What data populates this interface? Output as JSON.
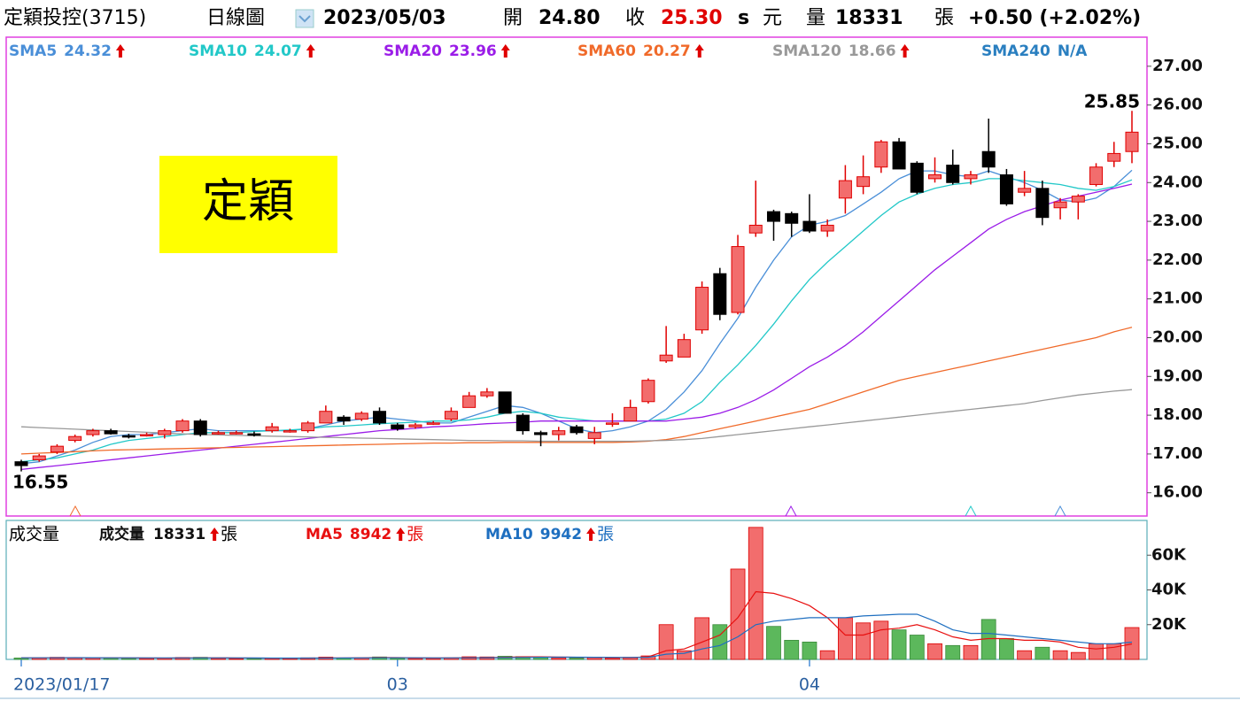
{
  "header": {
    "title": "定穎投控(3715)",
    "period": "日線圖",
    "date": "2023/05/03",
    "open_label": "開",
    "open": "24.80",
    "close_label": "收",
    "close": "25.30",
    "s": "s",
    "currency": "元",
    "volume_label": "量",
    "volume": "18331",
    "volume_unit": "張",
    "change": "+0.50 (+2.02%)"
  },
  "chart_data": [
    {
      "type": "candlestick",
      "categories": [
        "2023/01/17",
        null,
        null,
        null,
        null,
        null,
        null,
        null,
        null,
        null,
        null,
        null,
        null,
        null,
        null,
        null,
        null,
        null,
        null,
        null,
        null,
        "03",
        null,
        null,
        null,
        null,
        null,
        null,
        null,
        null,
        null,
        null,
        null,
        null,
        null,
        null,
        null,
        null,
        null,
        null,
        null,
        null,
        null,
        null,
        "04",
        null,
        null,
        null,
        null,
        null,
        null,
        null,
        null,
        null,
        null,
        null,
        null,
        null,
        null,
        null,
        null,
        null,
        null
      ],
      "open": [
        16.8,
        16.85,
        17.05,
        17.35,
        17.5,
        17.6,
        17.47,
        17.5,
        17.5,
        17.6,
        17.85,
        17.55,
        17.55,
        17.52,
        17.6,
        17.6,
        17.6,
        17.8,
        17.95,
        17.9,
        18.1,
        17.75,
        17.7,
        17.8,
        17.9,
        18.2,
        18.5,
        18.6,
        18.0,
        17.55,
        17.5,
        17.7,
        17.4,
        17.8,
        17.85,
        18.35,
        19.4,
        19.5,
        20.2,
        21.65,
        20.65,
        22.7,
        23.25,
        23.2,
        23.0,
        22.75,
        23.6,
        23.9,
        24.4,
        25.05,
        24.5,
        24.1,
        24.45,
        24.1,
        24.8,
        24.2,
        23.75,
        23.85,
        23.35,
        23.5,
        23.95,
        24.55,
        24.8
      ],
      "high": [
        16.85,
        17.0,
        17.25,
        17.5,
        17.65,
        17.65,
        17.52,
        17.55,
        17.65,
        17.9,
        17.9,
        17.6,
        17.6,
        17.58,
        17.8,
        17.65,
        17.85,
        18.25,
        18.0,
        18.1,
        18.2,
        17.8,
        17.8,
        17.85,
        18.2,
        18.6,
        18.7,
        18.6,
        18.05,
        17.6,
        17.7,
        17.75,
        17.7,
        18.05,
        18.4,
        18.95,
        20.3,
        20.1,
        21.45,
        21.8,
        22.65,
        24.05,
        23.3,
        23.25,
        23.7,
        23.05,
        24.45,
        24.7,
        25.1,
        25.15,
        24.55,
        24.65,
        24.85,
        24.3,
        25.65,
        24.35,
        24.3,
        24.05,
        23.6,
        23.7,
        24.5,
        25.05,
        25.85
      ],
      "low": [
        16.55,
        16.8,
        17.0,
        17.3,
        17.45,
        17.5,
        17.4,
        17.45,
        17.4,
        17.55,
        17.45,
        17.5,
        17.5,
        17.45,
        17.55,
        17.55,
        17.55,
        17.8,
        17.75,
        17.85,
        17.75,
        17.6,
        17.65,
        17.75,
        17.85,
        18.2,
        18.45,
        18.05,
        17.5,
        17.2,
        17.35,
        17.5,
        17.25,
        17.7,
        17.85,
        18.3,
        19.35,
        19.5,
        20.1,
        20.45,
        20.6,
        22.6,
        22.5,
        22.6,
        22.7,
        22.6,
        23.2,
        23.7,
        24.25,
        24.35,
        23.7,
        24.0,
        23.95,
        23.95,
        24.25,
        23.4,
        23.65,
        22.9,
        23.05,
        23.05,
        23.9,
        24.4,
        24.5
      ],
      "close": [
        16.7,
        16.95,
        17.2,
        17.45,
        17.6,
        17.52,
        17.45,
        17.5,
        17.6,
        17.85,
        17.5,
        17.55,
        17.55,
        17.5,
        17.7,
        17.6,
        17.8,
        18.1,
        17.85,
        18.05,
        17.8,
        17.65,
        17.75,
        17.8,
        18.1,
        18.5,
        18.6,
        18.05,
        17.6,
        17.5,
        17.6,
        17.55,
        17.55,
        17.8,
        18.2,
        18.9,
        19.55,
        19.95,
        21.3,
        20.6,
        22.35,
        22.9,
        23.0,
        22.95,
        22.75,
        22.9,
        24.05,
        24.15,
        25.05,
        24.35,
        23.75,
        24.2,
        24.0,
        24.2,
        24.4,
        23.45,
        23.85,
        23.1,
        23.5,
        23.65,
        24.4,
        24.75,
        25.3
      ],
      "up_color": "#f26d6d",
      "up_edge": "#e00000",
      "down_color": "#000000",
      "series": [
        {
          "name": "SMA5",
          "color": "#4a8fd8",
          "values": [
            16.75,
            16.8,
            16.95,
            17.1,
            17.3,
            17.45,
            17.5,
            17.5,
            17.55,
            17.6,
            17.65,
            17.6,
            17.6,
            17.6,
            17.6,
            17.6,
            17.65,
            17.75,
            17.85,
            17.9,
            17.95,
            17.9,
            17.85,
            17.8,
            17.8,
            17.95,
            18.1,
            18.25,
            18.2,
            18.05,
            17.85,
            17.65,
            17.55,
            17.6,
            17.7,
            17.85,
            18.15,
            18.6,
            19.15,
            19.85,
            20.5,
            21.3,
            22.0,
            22.6,
            22.9,
            23.0,
            23.15,
            23.45,
            23.75,
            24.1,
            24.3,
            24.3,
            24.2,
            24.15,
            24.3,
            24.15,
            24.0,
            23.8,
            23.55,
            23.5,
            23.6,
            23.9,
            24.32
          ]
        },
        {
          "name": "SMA10",
          "color": "#22c8c8",
          "values": [
            16.8,
            16.85,
            16.9,
            17.0,
            17.1,
            17.25,
            17.35,
            17.4,
            17.45,
            17.5,
            17.55,
            17.55,
            17.55,
            17.58,
            17.6,
            17.62,
            17.65,
            17.7,
            17.72,
            17.75,
            17.78,
            17.8,
            17.82,
            17.85,
            17.85,
            17.88,
            17.95,
            18.05,
            18.1,
            18.05,
            17.95,
            17.9,
            17.85,
            17.85,
            17.85,
            17.85,
            17.9,
            18.05,
            18.35,
            18.85,
            19.3,
            19.8,
            20.35,
            20.95,
            21.5,
            21.95,
            22.35,
            22.75,
            23.15,
            23.5,
            23.7,
            23.85,
            23.95,
            24.0,
            24.1,
            24.1,
            24.05,
            24.0,
            23.95,
            23.85,
            23.8,
            23.9,
            24.07
          ]
        },
        {
          "name": "SMA20",
          "color": "#9b1de8",
          "values": [
            16.6,
            16.65,
            16.7,
            16.75,
            16.8,
            16.85,
            16.9,
            16.95,
            17.0,
            17.05,
            17.1,
            17.15,
            17.2,
            17.25,
            17.3,
            17.35,
            17.4,
            17.45,
            17.5,
            17.55,
            17.6,
            17.63,
            17.66,
            17.7,
            17.72,
            17.75,
            17.78,
            17.8,
            17.82,
            17.85,
            17.85,
            17.85,
            17.85,
            17.85,
            17.85,
            17.85,
            17.85,
            17.9,
            17.95,
            18.05,
            18.2,
            18.4,
            18.65,
            18.95,
            19.25,
            19.5,
            19.8,
            20.15,
            20.55,
            20.95,
            21.35,
            21.75,
            22.1,
            22.45,
            22.8,
            23.05,
            23.25,
            23.4,
            23.55,
            23.65,
            23.75,
            23.85,
            23.96
          ]
        },
        {
          "name": "SMA60",
          "color": "#f06a2a",
          "values": [
            17.0,
            17.02,
            17.04,
            17.06,
            17.08,
            17.1,
            17.11,
            17.12,
            17.13,
            17.14,
            17.15,
            17.16,
            17.17,
            17.18,
            17.19,
            17.2,
            17.21,
            17.22,
            17.23,
            17.24,
            17.25,
            17.26,
            17.27,
            17.28,
            17.28,
            17.29,
            17.29,
            17.3,
            17.3,
            17.3,
            17.3,
            17.3,
            17.3,
            17.3,
            17.31,
            17.33,
            17.37,
            17.45,
            17.55,
            17.65,
            17.75,
            17.85,
            17.95,
            18.05,
            18.15,
            18.3,
            18.45,
            18.6,
            18.75,
            18.9,
            19.0,
            19.1,
            19.2,
            19.3,
            19.4,
            19.5,
            19.6,
            19.7,
            19.8,
            19.9,
            20.0,
            20.15,
            20.27
          ]
        },
        {
          "name": "SMA120",
          "color": "#999999",
          "values": [
            17.7,
            17.68,
            17.66,
            17.64,
            17.62,
            17.6,
            17.58,
            17.56,
            17.54,
            17.52,
            17.5,
            17.49,
            17.48,
            17.47,
            17.46,
            17.45,
            17.44,
            17.43,
            17.42,
            17.41,
            17.4,
            17.39,
            17.38,
            17.37,
            17.36,
            17.35,
            17.35,
            17.34,
            17.34,
            17.33,
            17.33,
            17.33,
            17.33,
            17.33,
            17.33,
            17.34,
            17.35,
            17.37,
            17.4,
            17.45,
            17.5,
            17.55,
            17.6,
            17.65,
            17.7,
            17.75,
            17.8,
            17.85,
            17.9,
            17.95,
            18.0,
            18.05,
            18.1,
            18.15,
            18.2,
            18.25,
            18.3,
            18.38,
            18.45,
            18.52,
            18.57,
            18.62,
            18.66
          ]
        },
        {
          "name": "SMA240",
          "color": "#2a7fc0",
          "value_label": "N/A"
        }
      ],
      "watermark": "定穎",
      "ylim": [
        15.4,
        27.75
      ],
      "yticks": [
        {
          "value": 16,
          "label": "16.00"
        },
        {
          "value": 17,
          "label": "17.00"
        },
        {
          "value": 18,
          "label": "18.00"
        },
        {
          "value": 19,
          "label": "19.00"
        },
        {
          "value": 20,
          "label": "20.00"
        },
        {
          "value": 21,
          "label": "21.00"
        },
        {
          "value": 22,
          "label": "22.00"
        },
        {
          "value": 23,
          "label": "23.00"
        },
        {
          "value": 24,
          "label": "24.00"
        },
        {
          "value": 25,
          "label": "25.00"
        },
        {
          "value": 26,
          "label": "26.00"
        },
        {
          "value": 27,
          "label": "27.00"
        }
      ]
    },
    {
      "type": "bar",
      "title": "成交量",
      "name": "成交量",
      "unit": "張",
      "up_color": "#f26d6d",
      "down_color": "#5cb85c",
      "values": [
        800,
        900,
        1200,
        1000,
        900,
        700,
        600,
        600,
        800,
        1100,
        1200,
        600,
        500,
        500,
        700,
        600,
        900,
        1300,
        800,
        900,
        1400,
        700,
        600,
        600,
        900,
        1500,
        1400,
        1800,
        1600,
        1200,
        900,
        800,
        1300,
        700,
        1200,
        2000,
        20000,
        5000,
        24000,
        20000,
        52000,
        76000,
        19000,
        11000,
        10000,
        5000,
        24000,
        21000,
        22000,
        17000,
        14000,
        9000,
        8000,
        8000,
        23000,
        12000,
        5000,
        7000,
        5000,
        4000,
        9000,
        9000,
        18331
      ],
      "series": [
        {
          "name": "MA5",
          "color": "#e81010",
          "values": [
            900,
            900,
            950,
            1000,
            950,
            900,
            850,
            800,
            750,
            800,
            900,
            900,
            850,
            750,
            700,
            650,
            700,
            800,
            850,
            900,
            1050,
            1000,
            900,
            850,
            850,
            950,
            1000,
            1200,
            1500,
            1500,
            1400,
            1200,
            1100,
            1000,
            1000,
            1500,
            5000,
            6000,
            10000,
            14000,
            24000,
            39000,
            38000,
            35000,
            31000,
            24000,
            14000,
            14000,
            17000,
            18000,
            20000,
            17000,
            13000,
            11000,
            12000,
            12000,
            11000,
            11000,
            10000,
            7000,
            6000,
            7000,
            8942
          ]
        },
        {
          "name": "MA10",
          "color": "#1e6fc0",
          "values": [
            900,
            900,
            920,
            950,
            950,
            920,
            900,
            880,
            850,
            850,
            860,
            860,
            850,
            800,
            780,
            750,
            760,
            780,
            800,
            820,
            900,
            920,
            900,
            880,
            870,
            900,
            950,
            1000,
            1100,
            1200,
            1250,
            1250,
            1200,
            1150,
            1100,
            1200,
            3000,
            3500,
            6000,
            8000,
            13000,
            20000,
            22000,
            23000,
            24000,
            24000,
            24000,
            25000,
            25500,
            26000,
            26000,
            22000,
            17000,
            15000,
            15000,
            14000,
            13000,
            12000,
            11000,
            10000,
            9000,
            9000,
            9942
          ]
        }
      ],
      "ylim": [
        0,
        80000
      ],
      "yticks": [
        {
          "value": 20000,
          "label": "20K"
        },
        {
          "value": 40000,
          "label": "40K"
        },
        {
          "value": 60000,
          "label": "60K"
        }
      ]
    }
  ]
}
